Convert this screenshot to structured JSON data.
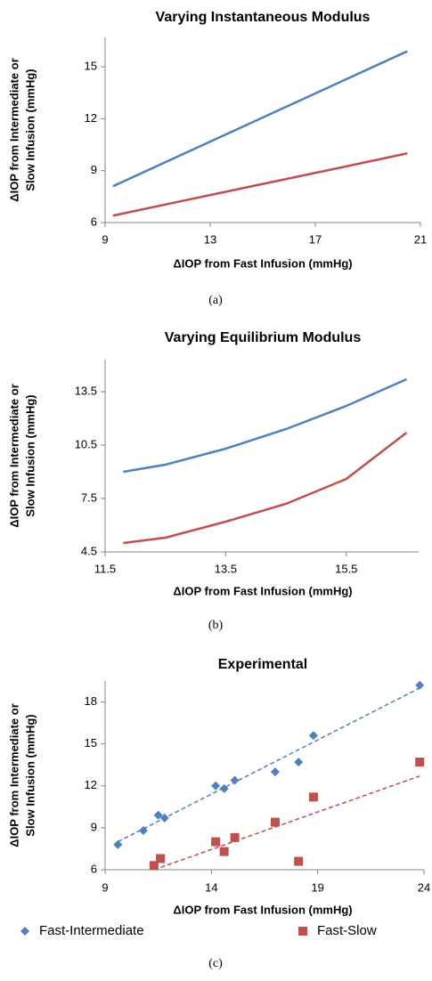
{
  "chart_data": [
    {
      "type": "line",
      "title": "Varying Instantaneous Modulus",
      "caption": "(a)",
      "x_label": "ΔIOP from Fast Infusion (mmHg)",
      "y_label": [
        "ΔIOP from Intermediate or",
        "Slow Infusion (mmHg)"
      ],
      "x": [
        9.3,
        12,
        15,
        18,
        20.5
      ],
      "series": [
        {
          "color": "#4f81bd",
          "values": [
            8.1,
            9.98,
            12.07,
            14.16,
            15.9
          ]
        },
        {
          "color": "#c0504d",
          "values": [
            6.4,
            7.27,
            8.23,
            9.19,
            10.0
          ]
        }
      ],
      "xlim": [
        9,
        21
      ],
      "xticks": [
        9,
        13,
        17,
        21
      ],
      "ylim": [
        6,
        16.7
      ],
      "yticks": [
        6,
        9,
        12,
        15
      ]
    },
    {
      "type": "line",
      "title": "Varying Equilibrium Modulus",
      "caption": "(b)",
      "x_label": "ΔIOP from Fast Infusion (mmHg)",
      "y_label": [
        "ΔIOP from Intermediate or",
        "Slow Infusion (mmHg)"
      ],
      "x": [
        11.8,
        12.5,
        13.5,
        14.5,
        15.5,
        16.5
      ],
      "series": [
        {
          "color": "#4f81bd",
          "values": [
            9.0,
            9.4,
            10.3,
            11.4,
            12.7,
            14.2
          ]
        },
        {
          "color": "#c0504d",
          "values": [
            5.0,
            5.3,
            6.2,
            7.2,
            8.6,
            11.2
          ]
        }
      ],
      "xlim": [
        11.5,
        16.7
      ],
      "xticks": [
        11.5,
        13.5,
        15.5
      ],
      "ylim": [
        4.5,
        15.3
      ],
      "yticks": [
        4.5,
        7.5,
        10.5,
        13.5
      ]
    },
    {
      "type": "scatter",
      "title": "Experimental",
      "caption": "(c)",
      "x_label": "ΔIOP from Fast Infusion (mmHg)",
      "y_label": [
        "ΔIOP from Intermediate or",
        "Slow Infusion (mmHg)"
      ],
      "series": [
        {
          "name": "Fast-Intermediate",
          "color": "#4f81bd",
          "marker": "diamond",
          "x": [
            9.6,
            10.8,
            11.5,
            11.8,
            14.2,
            14.6,
            15.1,
            17.0,
            18.1,
            18.8,
            23.8
          ],
          "values": [
            7.8,
            8.8,
            9.9,
            9.7,
            12.0,
            11.8,
            12.4,
            13.0,
            13.7,
            15.6,
            19.2
          ]
        },
        {
          "name": "Fast-Slow",
          "color": "#c0504d",
          "marker": "square",
          "x": [
            11.3,
            11.6,
            14.2,
            14.6,
            15.1,
            17.0,
            18.1,
            18.8,
            23.8
          ],
          "values": [
            6.3,
            6.8,
            8.0,
            7.3,
            8.3,
            9.4,
            6.6,
            11.2,
            13.7
          ]
        }
      ],
      "trendlines": [
        {
          "color": "#4f81bd",
          "x": [
            9.6,
            23.8
          ],
          "values": [
            8.0,
            19.0
          ]
        },
        {
          "color": "#c0504d",
          "x": [
            11.3,
            23.8
          ],
          "values": [
            6.0,
            12.7
          ]
        }
      ],
      "xlim": [
        9,
        24
      ],
      "xticks": [
        9,
        14,
        19,
        24
      ],
      "ylim": [
        6,
        19.5
      ],
      "yticks": [
        6,
        9,
        12,
        15,
        18
      ]
    }
  ]
}
